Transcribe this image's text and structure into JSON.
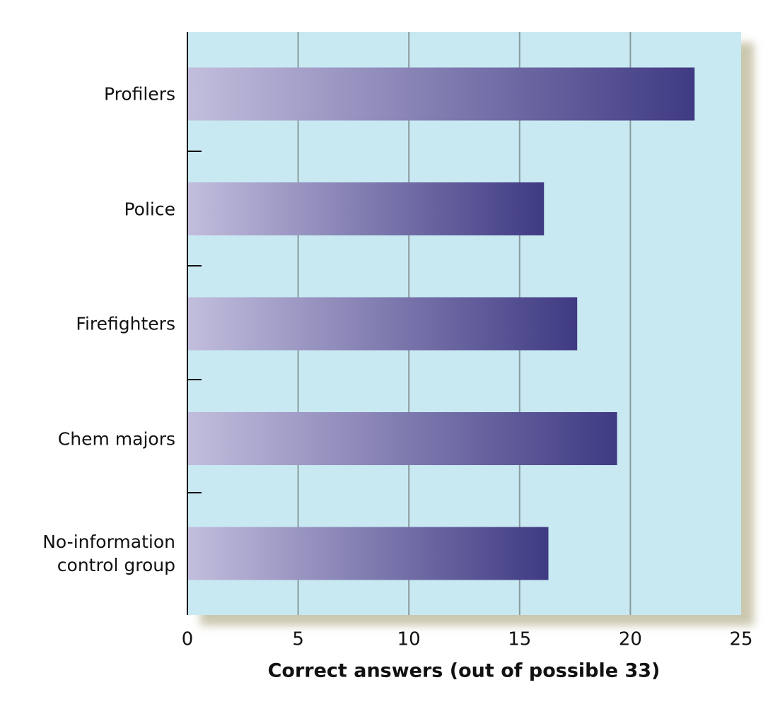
{
  "chart_data": {
    "type": "bar",
    "orientation": "horizontal",
    "x_label": "Correct answers (out of possible 33)",
    "categories": [
      "Profilers",
      "Police",
      "Firefighters",
      "Chem majors",
      "No-information control group"
    ],
    "values": [
      22.9,
      16.1,
      17.6,
      19.4,
      16.3
    ],
    "color": [
      "#c2bedd",
      "#3f3a83"
    ],
    "xlim": [
      0,
      25
    ],
    "xticks": [
      0,
      5,
      10,
      15,
      20,
      25
    ],
    "grid": true,
    "background": "#c8e9f2"
  }
}
